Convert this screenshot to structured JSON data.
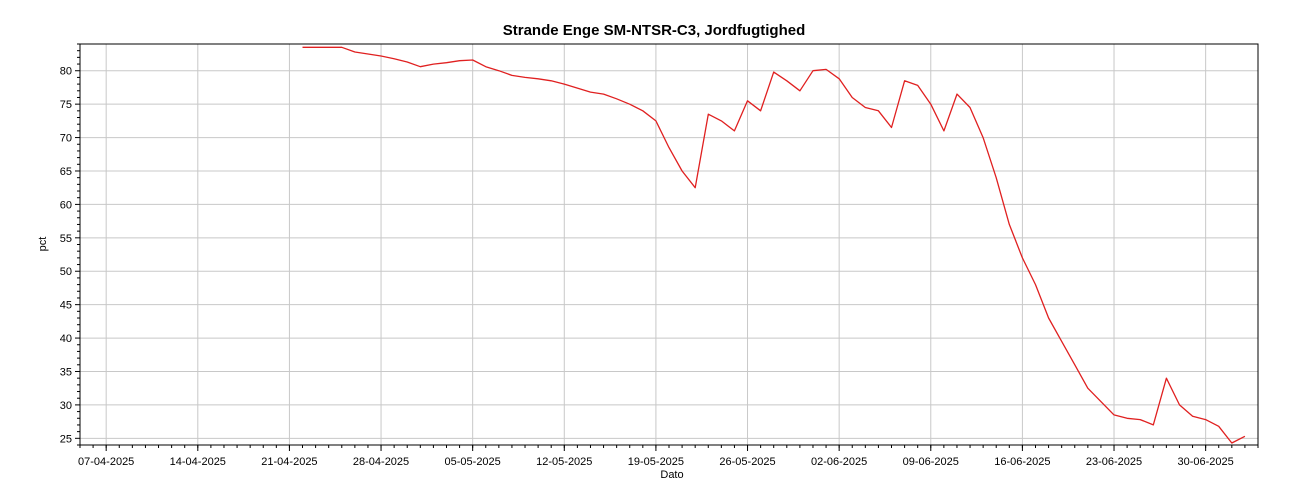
{
  "chart_data": {
    "type": "line",
    "title": "Strande Enge SM-NTSR-C3, Jordfugtighed",
    "xlabel": "Dato",
    "ylabel": "pct",
    "ylim": [
      24,
      84
    ],
    "xlim": [
      "2025-04-05",
      "2025-07-04"
    ],
    "grid": true,
    "yticks": [
      25,
      30,
      35,
      40,
      45,
      50,
      55,
      60,
      65,
      70,
      75,
      80
    ],
    "xticks": [
      "07-04-2025",
      "14-04-2025",
      "21-04-2025",
      "28-04-2025",
      "05-05-2025",
      "12-05-2025",
      "19-05-2025",
      "26-05-2025",
      "02-06-2025",
      "09-06-2025",
      "16-06-2025",
      "23-06-2025",
      "30-06-2025"
    ],
    "colors": {
      "series": "#e02020",
      "grid": "#c8c8c8",
      "axis": "#000000"
    },
    "series": [
      {
        "x": [
          "2025-04-22",
          "2025-04-25",
          "2025-04-26",
          "2025-04-27",
          "2025-04-28",
          "2025-04-29",
          "2025-04-30",
          "2025-05-01",
          "2025-05-02",
          "2025-05-03",
          "2025-05-04",
          "2025-05-05",
          "2025-05-06",
          "2025-05-07",
          "2025-05-08",
          "2025-05-09",
          "2025-05-10",
          "2025-05-11",
          "2025-05-12",
          "2025-05-13",
          "2025-05-14",
          "2025-05-15",
          "2025-05-16",
          "2025-05-17",
          "2025-05-18",
          "2025-05-19",
          "2025-05-20",
          "2025-05-21",
          "2025-05-22",
          "2025-05-23",
          "2025-05-24",
          "2025-05-25",
          "2025-05-26",
          "2025-05-27",
          "2025-05-28",
          "2025-05-29",
          "2025-05-30",
          "2025-05-31",
          "2025-06-01",
          "2025-06-02",
          "2025-06-03",
          "2025-06-04",
          "2025-06-05",
          "2025-06-06",
          "2025-06-07",
          "2025-06-08",
          "2025-06-09",
          "2025-06-10",
          "2025-06-11",
          "2025-06-12",
          "2025-06-13",
          "2025-06-14",
          "2025-06-15",
          "2025-06-16",
          "2025-06-17",
          "2025-06-18",
          "2025-06-19",
          "2025-06-20",
          "2025-06-21",
          "2025-06-22",
          "2025-06-23",
          "2025-06-24",
          "2025-06-25",
          "2025-06-26",
          "2025-06-27",
          "2025-06-28",
          "2025-06-29",
          "2025-06-30",
          "2025-07-01",
          "2025-07-02",
          "2025-07-03"
        ],
        "values": [
          83.5,
          83.5,
          82.8,
          82.5,
          82.2,
          81.8,
          81.3,
          80.6,
          81.0,
          81.2,
          81.5,
          81.6,
          80.6,
          80.0,
          79.3,
          79.0,
          78.8,
          78.5,
          78.0,
          77.4,
          76.8,
          76.5,
          75.8,
          75.0,
          74.0,
          72.5,
          68.5,
          65.0,
          62.5,
          73.5,
          72.5,
          71.0,
          75.5,
          74.0,
          79.8,
          78.5,
          77.0,
          80.0,
          80.2,
          78.8,
          76.0,
          74.5,
          74.0,
          71.5,
          78.5,
          77.8,
          75.0,
          71.0,
          76.5,
          74.5,
          70.0,
          64.0,
          57.0,
          52.0,
          48.0,
          43.0,
          39.5,
          36.0,
          32.5,
          30.5,
          28.5,
          28.0,
          27.8,
          27.0,
          34.0,
          30.0,
          28.3,
          27.8,
          26.8,
          24.3,
          25.3
        ]
      }
    ]
  }
}
